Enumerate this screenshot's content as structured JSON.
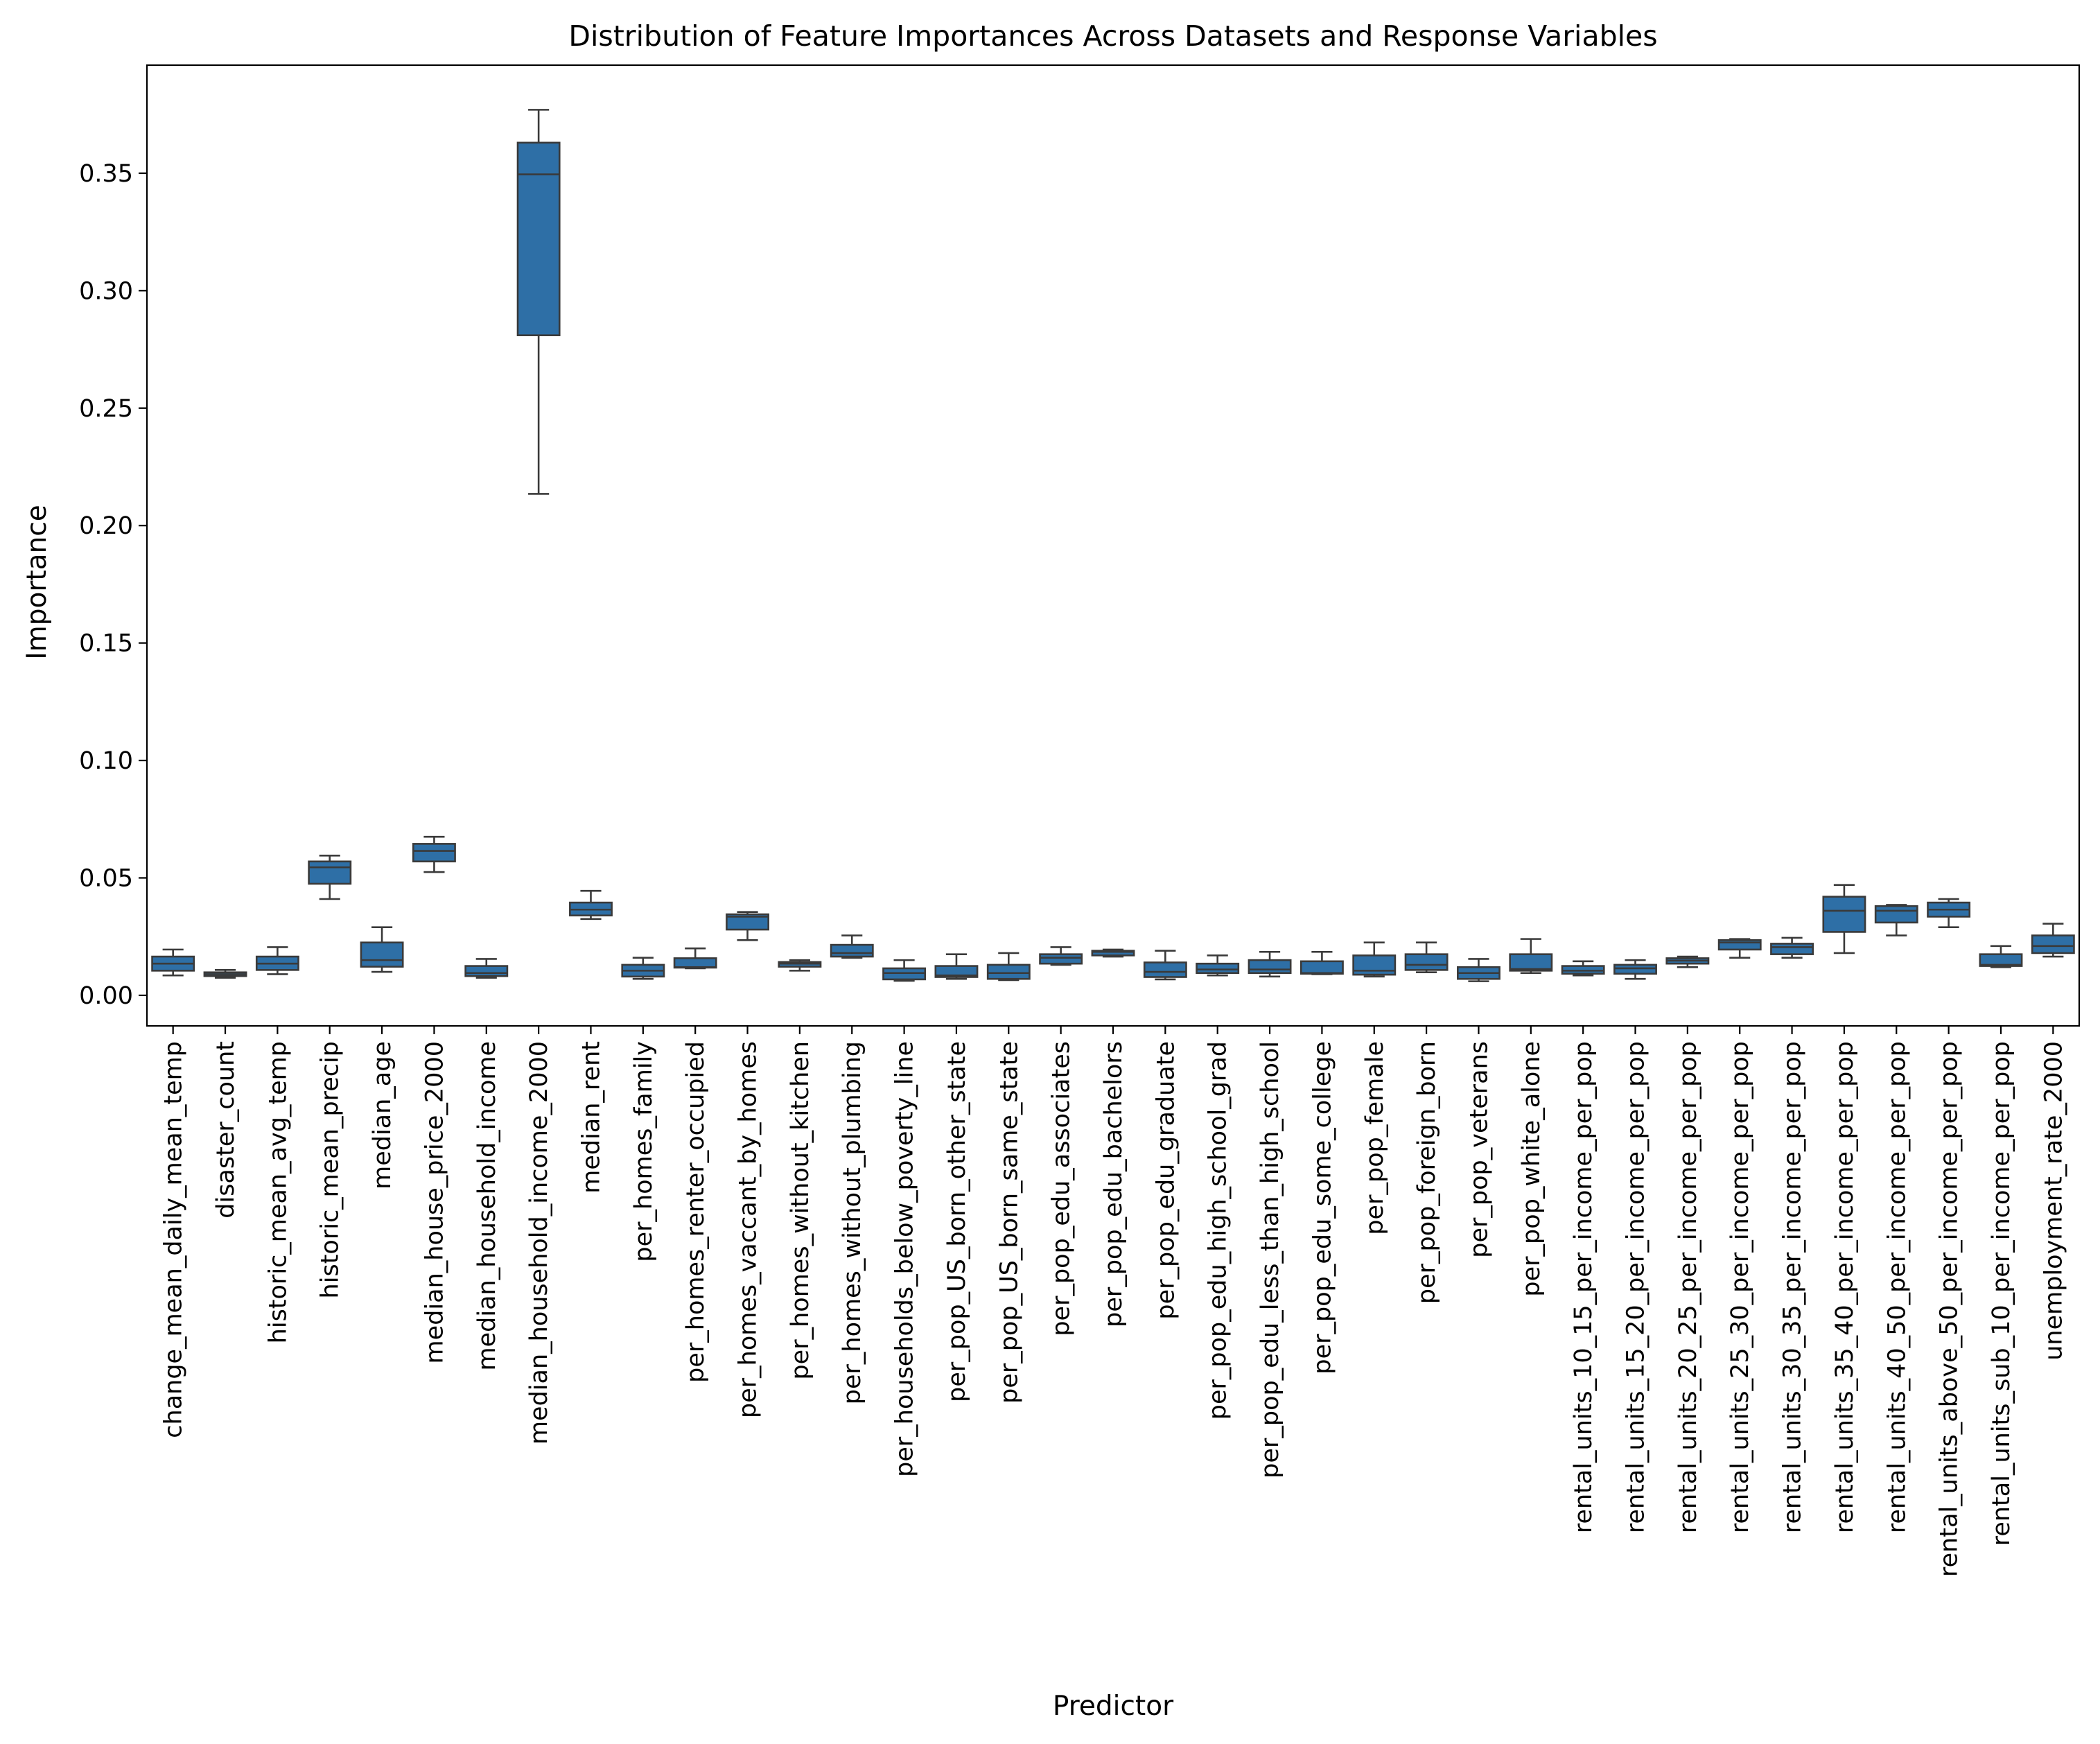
{
  "chart_data": {
    "type": "box",
    "title": "Distribution of Feature Importances Across Datasets and Response Variables",
    "xlabel": "Predictor",
    "ylabel": "Importance",
    "ylim": [
      -0.013,
      0.396
    ],
    "yticks": [
      0.0,
      0.05,
      0.1,
      0.15,
      0.2,
      0.25,
      0.3,
      0.35
    ],
    "ytick_labels": [
      "0.00",
      "0.05",
      "0.10",
      "0.15",
      "0.20",
      "0.25",
      "0.30",
      "0.35"
    ],
    "grid": false,
    "legend": "none",
    "box_color": "#2e6fa6",
    "line_color": "#3a3a3a",
    "boxes": [
      {
        "name": "change_mean_daily_mean_temp",
        "whislo": 0.0085,
        "q1": 0.0105,
        "med": 0.0135,
        "q3": 0.0165,
        "whishi": 0.0195
      },
      {
        "name": "disaster_count",
        "whislo": 0.0075,
        "q1": 0.0082,
        "med": 0.009,
        "q3": 0.0098,
        "whishi": 0.0108
      },
      {
        "name": "historic_mean_avg_temp",
        "whislo": 0.009,
        "q1": 0.0108,
        "med": 0.0135,
        "q3": 0.0165,
        "whishi": 0.0205
      },
      {
        "name": "historic_mean_precip",
        "whislo": 0.041,
        "q1": 0.0475,
        "med": 0.0545,
        "q3": 0.057,
        "whishi": 0.0595
      },
      {
        "name": "median_age",
        "whislo": 0.01,
        "q1": 0.0122,
        "med": 0.015,
        "q3": 0.0225,
        "whishi": 0.029
      },
      {
        "name": "median_house_price_2000",
        "whislo": 0.0525,
        "q1": 0.057,
        "med": 0.0615,
        "q3": 0.0645,
        "whishi": 0.0675
      },
      {
        "name": "median_household_income",
        "whislo": 0.0075,
        "q1": 0.0082,
        "med": 0.0095,
        "q3": 0.0125,
        "whishi": 0.0155
      },
      {
        "name": "median_household_income_2000",
        "whislo": 0.2135,
        "q1": 0.281,
        "med": 0.3495,
        "q3": 0.363,
        "whishi": 0.377
      },
      {
        "name": "median_rent",
        "whislo": 0.0325,
        "q1": 0.034,
        "med": 0.0365,
        "q3": 0.0395,
        "whishi": 0.0445
      },
      {
        "name": "per_homes_family",
        "whislo": 0.007,
        "q1": 0.008,
        "med": 0.0105,
        "q3": 0.013,
        "whishi": 0.016
      },
      {
        "name": "per_homes_renter_occupied",
        "whislo": 0.0115,
        "q1": 0.0118,
        "med": 0.012,
        "q3": 0.0158,
        "whishi": 0.02
      },
      {
        "name": "per_homes_vaccant_by_homes",
        "whislo": 0.0235,
        "q1": 0.028,
        "med": 0.0335,
        "q3": 0.0345,
        "whishi": 0.0355
      },
      {
        "name": "per_homes_without_kitchen",
        "whislo": 0.0105,
        "q1": 0.0122,
        "med": 0.0135,
        "q3": 0.0142,
        "whishi": 0.015
      },
      {
        "name": "per_homes_without_plumbing",
        "whislo": 0.016,
        "q1": 0.0165,
        "med": 0.018,
        "q3": 0.0215,
        "whishi": 0.0255
      },
      {
        "name": "per_households_below_poverty_line",
        "whislo": 0.0062,
        "q1": 0.0068,
        "med": 0.0095,
        "q3": 0.0115,
        "whishi": 0.015
      },
      {
        "name": "per_pop_US_born_other_state",
        "whislo": 0.007,
        "q1": 0.0078,
        "med": 0.0085,
        "q3": 0.0125,
        "whishi": 0.0175
      },
      {
        "name": "per_pop_US_born_same_state",
        "whislo": 0.0065,
        "q1": 0.007,
        "med": 0.0095,
        "q3": 0.013,
        "whishi": 0.018
      },
      {
        "name": "per_pop_edu_associates",
        "whislo": 0.013,
        "q1": 0.0135,
        "med": 0.016,
        "q3": 0.0175,
        "whishi": 0.0205
      },
      {
        "name": "per_pop_edu_bachelors",
        "whislo": 0.0165,
        "q1": 0.017,
        "med": 0.0185,
        "q3": 0.019,
        "whishi": 0.0195
      },
      {
        "name": "per_pop_edu_graduate",
        "whislo": 0.0068,
        "q1": 0.0078,
        "med": 0.01,
        "q3": 0.014,
        "whishi": 0.019
      },
      {
        "name": "per_pop_edu_high_school_grad",
        "whislo": 0.0085,
        "q1": 0.0095,
        "med": 0.011,
        "q3": 0.0135,
        "whishi": 0.017
      },
      {
        "name": "per_pop_edu_less_than_high_school",
        "whislo": 0.008,
        "q1": 0.0095,
        "med": 0.011,
        "q3": 0.015,
        "whishi": 0.0185
      },
      {
        "name": "per_pop_edu_some_college",
        "whislo": 0.009,
        "q1": 0.0092,
        "med": 0.0095,
        "q3": 0.0145,
        "whishi": 0.0185
      },
      {
        "name": "per_pop_female",
        "whislo": 0.008,
        "q1": 0.0088,
        "med": 0.0105,
        "q3": 0.017,
        "whishi": 0.0225
      },
      {
        "name": "per_pop_foreign_born",
        "whislo": 0.0098,
        "q1": 0.0108,
        "med": 0.013,
        "q3": 0.0175,
        "whishi": 0.0225
      },
      {
        "name": "per_pop_veterans",
        "whislo": 0.006,
        "q1": 0.007,
        "med": 0.0095,
        "q3": 0.012,
        "whishi": 0.0155
      },
      {
        "name": "per_pop_white_alone",
        "whislo": 0.0095,
        "q1": 0.0105,
        "med": 0.0112,
        "q3": 0.0175,
        "whishi": 0.024
      },
      {
        "name": "rental_units_10_15_per_income_per_pop",
        "whislo": 0.0085,
        "q1": 0.0092,
        "med": 0.0105,
        "q3": 0.0125,
        "whishi": 0.0145
      },
      {
        "name": "rental_units_15_20_per_income_per_pop",
        "whislo": 0.007,
        "q1": 0.0092,
        "med": 0.0115,
        "q3": 0.013,
        "whishi": 0.015
      },
      {
        "name": "rental_units_20_25_per_income_per_pop",
        "whislo": 0.012,
        "q1": 0.0135,
        "med": 0.0148,
        "q3": 0.0158,
        "whishi": 0.0165
      },
      {
        "name": "rental_units_25_30_per_income_per_pop",
        "whislo": 0.016,
        "q1": 0.0195,
        "med": 0.0225,
        "q3": 0.0235,
        "whishi": 0.024
      },
      {
        "name": "rental_units_30_35_per_income_per_pop",
        "whislo": 0.016,
        "q1": 0.0175,
        "med": 0.0205,
        "q3": 0.022,
        "whishi": 0.0245
      },
      {
        "name": "rental_units_35_40_per_income_per_pop",
        "whislo": 0.018,
        "q1": 0.027,
        "med": 0.036,
        "q3": 0.042,
        "whishi": 0.047
      },
      {
        "name": "rental_units_40_50_per_income_per_pop",
        "whislo": 0.0255,
        "q1": 0.031,
        "med": 0.036,
        "q3": 0.038,
        "whishi": 0.0385
      },
      {
        "name": "rental_units_above_50_per_income_per_pop",
        "whislo": 0.029,
        "q1": 0.0335,
        "med": 0.0365,
        "q3": 0.0395,
        "whishi": 0.041
      },
      {
        "name": "rental_units_sub_10_per_income_per_pop",
        "whislo": 0.012,
        "q1": 0.0125,
        "med": 0.013,
        "q3": 0.0175,
        "whishi": 0.021
      },
      {
        "name": "unemployment_rate_2000",
        "whislo": 0.0165,
        "q1": 0.018,
        "med": 0.021,
        "q3": 0.0255,
        "whishi": 0.0305
      }
    ]
  }
}
